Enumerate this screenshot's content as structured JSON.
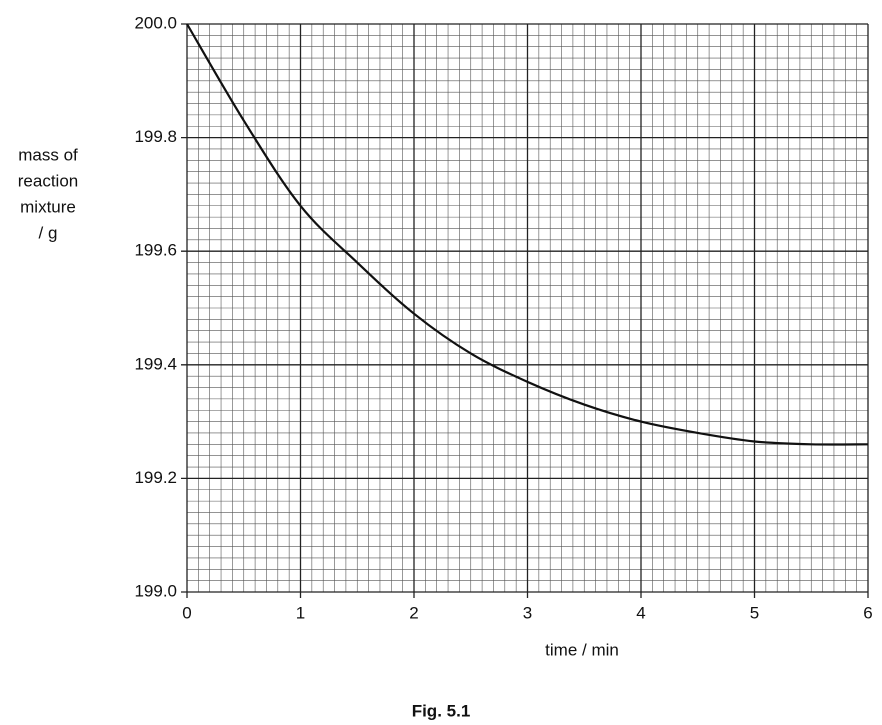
{
  "chart_data": {
    "type": "line",
    "title": "Fig. 5.1",
    "xlabel": "time / min",
    "ylabel": [
      "mass of",
      "reaction",
      "mixture",
      "/ g"
    ],
    "x": [
      0,
      0.5,
      1,
      1.5,
      2,
      2.5,
      3,
      3.5,
      4,
      4.5,
      5,
      5.5,
      6
    ],
    "series": [
      {
        "color": "#111111",
        "values": [
          200.0,
          199.83,
          199.68,
          199.58,
          199.49,
          199.42,
          199.37,
          199.33,
          199.3,
          199.28,
          199.265,
          199.26,
          199.26
        ]
      }
    ],
    "xlim": [
      0,
      6
    ],
    "xticks": [
      0,
      1,
      2,
      3,
      4,
      5,
      6
    ],
    "ylim": [
      199.0,
      200.0
    ],
    "yticks": [
      {
        "value": 199.0,
        "label": "199.0"
      },
      {
        "value": 199.2,
        "label": "199.2"
      },
      {
        "value": 199.4,
        "label": "199.4"
      },
      {
        "value": 199.6,
        "label": "199.6"
      },
      {
        "value": 199.8,
        "label": "199.8"
      },
      {
        "value": 200.0,
        "label": "200.0"
      }
    ],
    "grid": true
  }
}
